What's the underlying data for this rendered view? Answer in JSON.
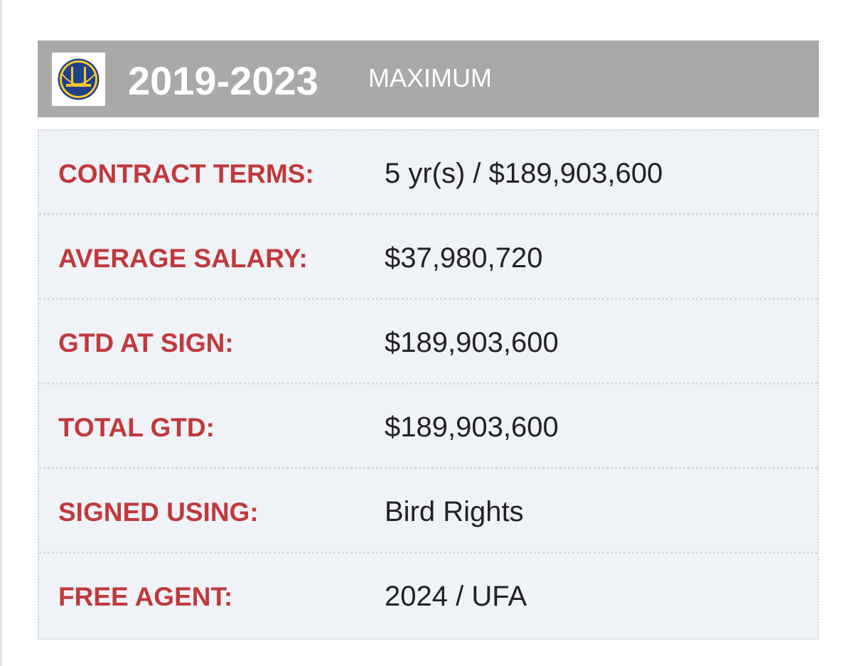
{
  "header": {
    "years": "2019-2023",
    "type": "MAXIMUM"
  },
  "table": {
    "rows": [
      [
        "CONTRACT TERMS:",
        "5 yr(s) / $189,903,600"
      ],
      [
        "AVERAGE SALARY:",
        "$37,980,720"
      ],
      [
        "GTD AT SIGN:",
        "$189,903,600"
      ],
      [
        "TOTAL GTD:",
        "$189,903,600"
      ],
      [
        "SIGNED USING:",
        "Bird Rights"
      ],
      [
        "FREE AGENT:",
        "2024 / UFA"
      ]
    ]
  }
}
